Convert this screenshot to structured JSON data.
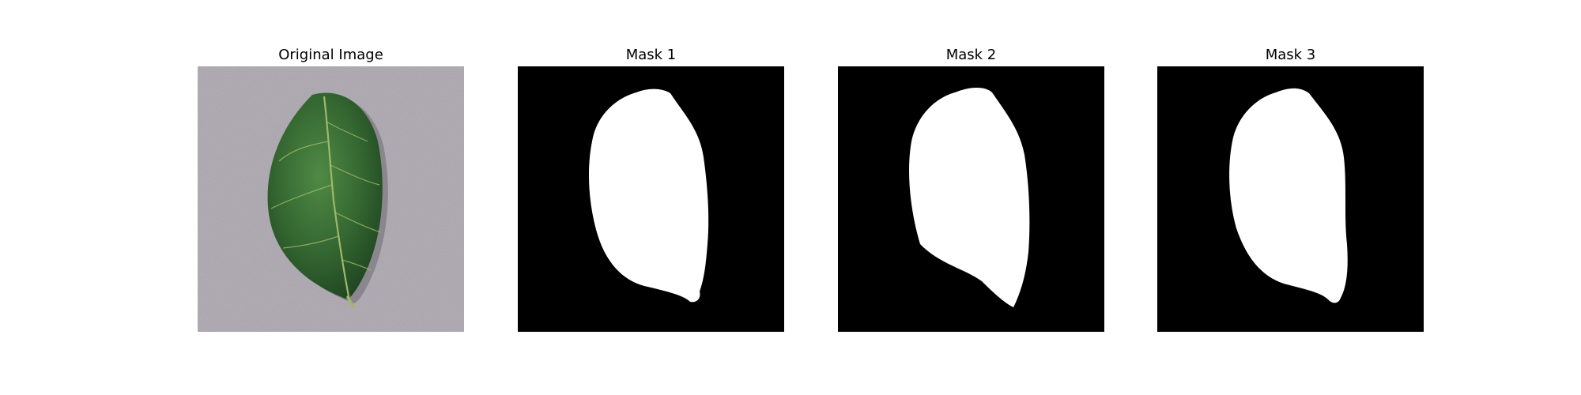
{
  "figure": {
    "panels": [
      {
        "title": "Original Image",
        "kind": "photo"
      },
      {
        "title": "Mask 1",
        "kind": "mask"
      },
      {
        "title": "Mask 2",
        "kind": "mask"
      },
      {
        "title": "Mask 3",
        "kind": "mask"
      }
    ]
  },
  "colors": {
    "mask_background": "#000000",
    "mask_foreground": "#ffffff",
    "photo_background": "#b5b0b8",
    "leaf_dark": "#2b5a2b",
    "leaf_mid": "#3e7a3a",
    "leaf_vein": "#9fb86a",
    "leaf_shadow": "#6e6a72"
  }
}
